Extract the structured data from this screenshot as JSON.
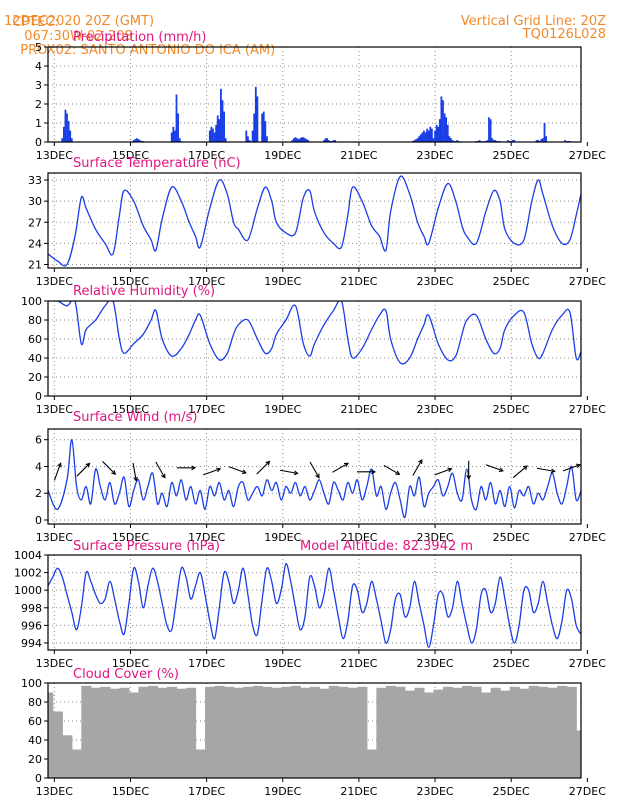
{
  "header": {
    "source": "CPTEC:",
    "coords": "067:30W-02:20S",
    "location": "PROX02: SANTO ANTONIO DO ICA (AM)",
    "init": "12DEC2020 20Z (GMT)",
    "grid_line": "Vertical Grid Line: 20Z",
    "model": "TQ0126L028"
  },
  "colors": {
    "header": "#f08a2a",
    "title": "#e0157f",
    "series": "#1a3ee6",
    "cloud": "#a6a6a6",
    "wind": "#000000"
  },
  "x_ticks": [
    "13DEC",
    "15DEC",
    "17DEC",
    "19DEC",
    "21DEC",
    "23DEC",
    "25DEC",
    "27DEC"
  ],
  "chart_data": [
    {
      "id": "precip",
      "type": "bar",
      "title": "Precipitation (mm/h)",
      "ylim": [
        0,
        5
      ],
      "yticks": [
        0,
        1,
        2,
        3,
        4,
        5
      ],
      "grid": true,
      "x_units": "hours since 12DEC 20Z",
      "x": [
        9,
        10,
        11,
        12,
        13,
        14,
        15,
        54,
        55,
        56,
        57,
        58,
        59,
        60,
        78,
        79,
        80,
        81,
        82,
        83,
        84,
        102,
        103,
        104,
        105,
        106,
        107,
        108,
        109,
        110,
        111,
        112,
        125,
        126,
        127,
        128,
        129,
        130,
        131,
        132,
        135,
        136,
        137,
        138,
        154,
        155,
        156,
        157,
        158,
        159,
        160,
        161,
        162,
        163,
        164,
        174,
        175,
        176,
        177,
        178,
        179,
        180,
        181,
        230,
        231,
        232,
        233,
        234,
        235,
        236,
        237,
        238,
        239,
        240,
        241,
        242,
        243,
        244,
        245,
        246,
        247,
        248,
        249,
        250,
        251,
        252,
        253,
        254,
        255,
        256,
        257,
        258,
        259,
        270,
        271,
        272,
        273,
        275,
        276,
        277,
        278,
        279,
        280,
        281,
        282,
        283,
        284,
        285,
        290,
        291,
        292,
        293,
        294,
        308,
        309,
        310,
        311,
        312,
        313,
        314,
        326,
        327,
        328,
        329,
        340,
        341,
        342,
        343
      ],
      "values": [
        0.2,
        0.8,
        1.7,
        1.5,
        1.1,
        0.6,
        0.2,
        0.1,
        0.15,
        0.2,
        0.15,
        0.1,
        0.05,
        0.05,
        0.5,
        0.8,
        0.6,
        2.5,
        1.5,
        0.2,
        0.05,
        0.6,
        0.8,
        0.7,
        0.5,
        0.9,
        1.4,
        1.2,
        2.8,
        2.2,
        1.6,
        0.2,
        0.6,
        0.3,
        0.1,
        0.05,
        0.6,
        1.5,
        2.9,
        2.4,
        1.5,
        1.6,
        1.1,
        0.3,
        0.1,
        0.2,
        0.25,
        0.2,
        0.15,
        0.2,
        0.25,
        0.25,
        0.2,
        0.15,
        0.1,
        0.1,
        0.2,
        0.2,
        0.1,
        0.05,
        0.05,
        0.1,
        0.1,
        0.05,
        0.1,
        0.15,
        0.2,
        0.3,
        0.4,
        0.5,
        0.6,
        0.5,
        0.7,
        0.6,
        0.8,
        0.7,
        0.2,
        0.6,
        0.9,
        0.8,
        1.2,
        2.4,
        2.2,
        1.5,
        1.3,
        0.9,
        0.3,
        0.2,
        0.1,
        0.05,
        0.05,
        0.1,
        0.05,
        0.05,
        0.05,
        0.1,
        0.05,
        0.05,
        0.05,
        0.1,
        1.3,
        1.2,
        0.2,
        0.1,
        0.1,
        0.05,
        0.05,
        0.05,
        0.1,
        0.05,
        0.05,
        0.1,
        0.1,
        0.1,
        0.1,
        0.05,
        0.15,
        0.2,
        1.0,
        0.3,
        0.1,
        0.05,
        0.05,
        0.05,
        0.1,
        0.6,
        0.05,
        0.05
      ]
    },
    {
      "id": "temp",
      "type": "line",
      "title": "Surface Temperature (nC)",
      "ylim": [
        20.5,
        34
      ],
      "yticks": [
        21,
        24,
        27,
        30,
        33
      ],
      "grid": true,
      "x_units": "hours since 12DEC 20Z",
      "x": [
        0,
        6,
        12,
        17,
        21,
        24,
        30,
        36,
        41,
        45,
        48,
        54,
        60,
        65,
        68,
        72,
        78,
        84,
        89,
        93,
        96,
        102,
        108,
        113,
        117,
        120,
        126,
        132,
        137,
        141,
        144,
        150,
        156,
        161,
        165,
        168,
        174,
        180,
        185,
        189,
        192,
        198,
        204,
        209,
        213,
        216,
        222,
        228,
        233,
        237,
        240,
        246,
        252,
        257,
        261,
        264,
        270,
        276,
        281,
        285,
        288,
        294,
        300,
        305,
        309,
        312,
        318,
        324,
        329,
        333,
        336
      ],
      "values": [
        22.5,
        21.5,
        21.0,
        25.0,
        30.5,
        29.0,
        26.0,
        24.0,
        22.5,
        28.0,
        31.5,
        30.0,
        26.5,
        24.5,
        23.0,
        27.5,
        32.0,
        30.0,
        27.0,
        25.0,
        23.5,
        29.0,
        33.0,
        31.0,
        27.0,
        26.0,
        24.5,
        29.0,
        32.0,
        30.0,
        27.0,
        25.5,
        25.5,
        30.5,
        31.5,
        28.5,
        25.5,
        24.0,
        23.5,
        28.0,
        32.0,
        30.0,
        26.5,
        25.0,
        23.0,
        28.5,
        33.5,
        31.0,
        27.0,
        25.0,
        24.0,
        29.0,
        32.5,
        30.0,
        26.5,
        25.0,
        24.0,
        28.5,
        31.5,
        30.0,
        26.0,
        24.0,
        24.5,
        30.0,
        33.0,
        31.0,
        26.5,
        24.0,
        24.5,
        28.0,
        31.0
      ]
    },
    {
      "id": "rh",
      "type": "line",
      "title": "Relative Humidity (%)",
      "ylim": [
        0,
        100
      ],
      "yticks": [
        0,
        20,
        40,
        60,
        80,
        100
      ],
      "grid": true,
      "x_units": "hours since 12DEC 20Z",
      "x": [
        0,
        6,
        12,
        17,
        21,
        24,
        30,
        36,
        41,
        45,
        48,
        54,
        60,
        65,
        68,
        72,
        78,
        84,
        89,
        93,
        96,
        102,
        108,
        113,
        117,
        120,
        126,
        132,
        137,
        141,
        144,
        150,
        156,
        161,
        165,
        168,
        174,
        180,
        185,
        189,
        192,
        198,
        204,
        209,
        213,
        216,
        222,
        228,
        233,
        237,
        240,
        246,
        252,
        257,
        261,
        264,
        270,
        276,
        281,
        285,
        288,
        294,
        300,
        305,
        309,
        312,
        318,
        324,
        329,
        333,
        336
      ],
      "values": [
        100,
        100,
        95,
        100,
        55,
        70,
        80,
        95,
        100,
        60,
        45,
        55,
        65,
        80,
        90,
        60,
        42,
        50,
        65,
        80,
        85,
        55,
        38,
        45,
        65,
        75,
        80,
        60,
        45,
        50,
        65,
        80,
        95,
        55,
        42,
        55,
        75,
        90,
        100,
        60,
        40,
        50,
        70,
        85,
        90,
        60,
        35,
        40,
        60,
        75,
        85,
        55,
        38,
        42,
        65,
        80,
        85,
        60,
        45,
        50,
        70,
        85,
        88,
        55,
        40,
        45,
        70,
        85,
        88,
        40,
        47
      ]
    },
    {
      "id": "wind",
      "type": "line",
      "title": "Surface Wind (m/s)",
      "ylim": [
        -0.3,
        6.8
      ],
      "yticks": [
        0,
        2,
        4,
        6
      ],
      "grid": true,
      "x_units": "hours since 12DEC 20Z",
      "x": [
        0,
        6,
        12,
        15,
        18,
        21,
        24,
        27,
        30,
        33,
        36,
        39,
        42,
        45,
        48,
        51,
        54,
        57,
        60,
        63,
        66,
        69,
        72,
        75,
        78,
        81,
        84,
        87,
        90,
        93,
        96,
        99,
        102,
        105,
        108,
        111,
        114,
        117,
        120,
        123,
        126,
        129,
        132,
        135,
        138,
        141,
        144,
        147,
        150,
        153,
        156,
        159,
        162,
        165,
        168,
        171,
        174,
        177,
        180,
        183,
        186,
        189,
        192,
        195,
        198,
        201,
        204,
        207,
        210,
        213,
        216,
        219,
        222,
        225,
        228,
        231,
        234,
        237,
        240,
        243,
        246,
        249,
        252,
        255,
        258,
        261,
        264,
        267,
        270,
        273,
        276,
        279,
        282,
        285,
        288,
        291,
        294,
        297,
        300,
        303,
        306,
        309,
        312,
        315,
        318,
        321,
        324,
        327,
        330,
        333,
        336
      ],
      "values": [
        2.2,
        0.8,
        3.0,
        6.0,
        2.5,
        1.5,
        2.5,
        1.2,
        3.8,
        2.5,
        1.5,
        2.8,
        1.2,
        2.0,
        3.2,
        1.0,
        2.2,
        3.0,
        1.5,
        2.5,
        3.5,
        1.2,
        2.0,
        1.0,
        2.8,
        1.8,
        3.0,
        1.5,
        2.5,
        1.2,
        2.2,
        0.8,
        2.5,
        1.8,
        2.8,
        1.5,
        2.2,
        1.0,
        2.5,
        2.8,
        1.5,
        2.0,
        2.5,
        1.8,
        3.0,
        2.2,
        2.8,
        1.5,
        2.5,
        2.0,
        2.8,
        1.8,
        2.5,
        1.5,
        2.2,
        3.0,
        2.0,
        1.2,
        2.8,
        2.2,
        1.5,
        2.8,
        2.0,
        3.0,
        1.5,
        2.5,
        3.8,
        1.8,
        2.5,
        0.8,
        2.0,
        2.8,
        1.5,
        0.2,
        2.5,
        1.8,
        3.2,
        1.0,
        2.0,
        2.5,
        3.0,
        1.8,
        2.5,
        3.5,
        2.0,
        1.5,
        3.8,
        1.5,
        0.8,
        2.5,
        1.5,
        2.8,
        1.2,
        2.2,
        1.0,
        2.5,
        0.9,
        2.2,
        1.8,
        2.5,
        1.2,
        2.0,
        1.5,
        2.5,
        3.5,
        2.0,
        1.2,
        2.5,
        4.0,
        1.5,
        2.2
      ],
      "vectors_deg": [
        70,
        45,
        315,
        280,
        300,
        0,
        20,
        340,
        45,
        350,
        300,
        30,
        0,
        330,
        60,
        20,
        270,
        340,
        40,
        350,
        20
      ]
    },
    {
      "id": "pres",
      "type": "line",
      "title": "Surface Pressure (hPa)",
      "subtitle": "Model Altitude: 82.3942 m",
      "ylim": [
        993.2,
        1004
      ],
      "yticks": [
        994,
        996,
        998,
        1000,
        1002,
        1004
      ],
      "grid": true,
      "x_units": "hours since 12DEC 20Z",
      "x": [
        0,
        3,
        6,
        9,
        12,
        15,
        18,
        21,
        24,
        27,
        30,
        33,
        36,
        39,
        42,
        45,
        48,
        51,
        54,
        57,
        60,
        63,
        66,
        69,
        72,
        75,
        78,
        81,
        84,
        87,
        90,
        93,
        96,
        99,
        102,
        105,
        108,
        111,
        114,
        117,
        120,
        123,
        126,
        129,
        132,
        135,
        138,
        141,
        144,
        147,
        150,
        153,
        156,
        159,
        162,
        165,
        168,
        171,
        174,
        177,
        180,
        183,
        186,
        189,
        192,
        195,
        198,
        201,
        204,
        207,
        210,
        213,
        216,
        219,
        222,
        225,
        228,
        231,
        234,
        237,
        240,
        243,
        246,
        249,
        252,
        255,
        258,
        261,
        264,
        267,
        270,
        273,
        276,
        279,
        282,
        285,
        288,
        291,
        294,
        297,
        300,
        303,
        306,
        309,
        312,
        315,
        318,
        321,
        324,
        327,
        330,
        333,
        336
      ],
      "values": [
        1000.5,
        1001.5,
        1002.5,
        1001.5,
        999.5,
        997.5,
        995.5,
        998.0,
        1002.0,
        1001.0,
        999.5,
        998.5,
        999.0,
        1001.0,
        999.0,
        996.5,
        995.0,
        998.5,
        1002.5,
        1001.0,
        998.0,
        1000.5,
        1002.5,
        1001.0,
        998.5,
        996.0,
        995.5,
        999.0,
        1002.5,
        1001.5,
        999.0,
        1000.5,
        1002.0,
        999.5,
        996.5,
        994.5,
        998.0,
        1002.0,
        1001.0,
        998.5,
        1000.0,
        1002.5,
        999.5,
        996.0,
        995.0,
        999.0,
        1002.5,
        1001.0,
        998.5,
        1000.0,
        1003.0,
        1001.0,
        998.0,
        995.5,
        997.0,
        1001.5,
        1000.5,
        998.0,
        999.5,
        1002.5,
        1000.0,
        997.0,
        994.5,
        996.5,
        1000.5,
        1000.0,
        997.5,
        998.5,
        1001.0,
        999.0,
        996.5,
        994.0,
        995.5,
        999.0,
        999.5,
        997.0,
        998.0,
        1001.0,
        998.5,
        996.0,
        993.5,
        996.0,
        999.5,
        999.5,
        997.0,
        998.0,
        1001.0,
        998.5,
        996.0,
        994.0,
        995.5,
        999.5,
        1000.0,
        997.5,
        998.5,
        1001.5,
        999.0,
        996.0,
        994.0,
        996.0,
        1000.0,
        1000.0,
        997.5,
        998.5,
        1001.0,
        998.5,
        996.0,
        994.5,
        996.5,
        1000.0,
        999.0,
        996.0,
        995.0
      ]
    },
    {
      "id": "cloud",
      "type": "bar",
      "title": "Cloud Cover (%)",
      "ylim": [
        0,
        100
      ],
      "yticks": [
        0,
        20,
        40,
        60,
        80,
        100
      ],
      "grid": true,
      "x_units": "hours since 12DEC 20Z",
      "x": [
        0,
        6,
        12,
        18,
        24,
        30,
        36,
        42,
        48,
        54,
        60,
        66,
        72,
        78,
        84,
        90,
        96,
        102,
        108,
        114,
        120,
        126,
        132,
        138,
        144,
        150,
        156,
        162,
        168,
        174,
        180,
        186,
        192,
        198,
        204,
        210,
        216,
        222,
        228,
        234,
        240,
        246,
        252,
        258,
        264,
        270,
        276,
        282,
        288,
        294,
        300,
        306,
        312,
        318,
        324,
        330,
        336
      ],
      "values": [
        90,
        70,
        45,
        30,
        97,
        95,
        96,
        94,
        95,
        90,
        96,
        97,
        95,
        96,
        94,
        95,
        30,
        96,
        97,
        96,
        95,
        96,
        97,
        96,
        95,
        96,
        97,
        95,
        96,
        94,
        97,
        96,
        95,
        96,
        30,
        95,
        97,
        96,
        92,
        95,
        90,
        93,
        96,
        95,
        97,
        96,
        90,
        95,
        92,
        96,
        94,
        97,
        96,
        95,
        97,
        96,
        50
      ]
    }
  ]
}
